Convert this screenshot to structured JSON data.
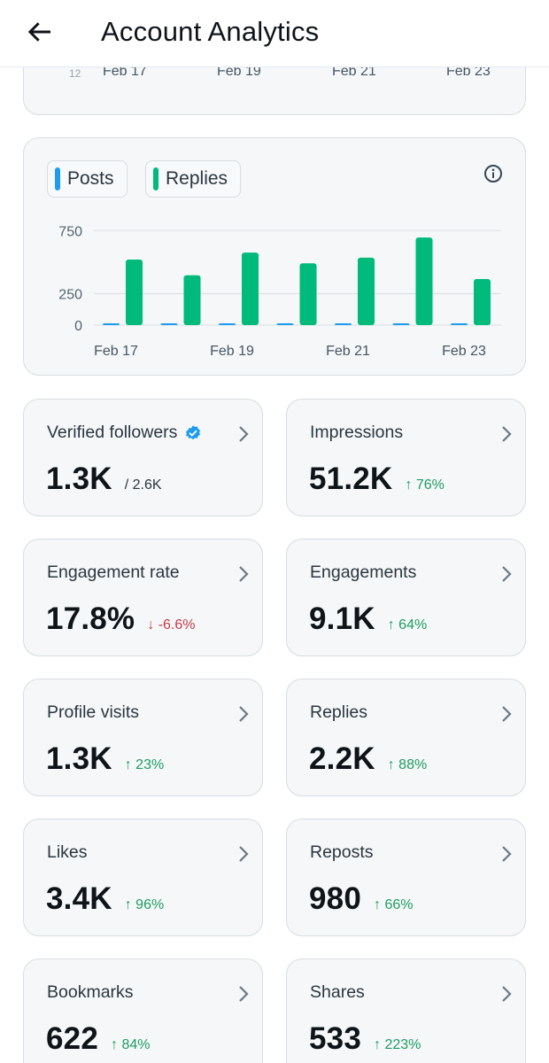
{
  "header": {
    "title": "Account Analytics",
    "back_icon": "arrow-left-icon"
  },
  "top_chart": {
    "partial_tick": "12",
    "x_ticks": [
      "Feb 17",
      "Feb 19",
      "Feb 21",
      "Feb 23"
    ]
  },
  "chart_data": {
    "type": "bar",
    "categories": [
      "Feb 17",
      "Feb 18",
      "Feb 19",
      "Feb 20",
      "Feb 21",
      "Feb 22",
      "Feb 23"
    ],
    "x_tick_labels": [
      "Feb 17",
      "Feb 19",
      "Feb 21",
      "Feb 23"
    ],
    "series": [
      {
        "name": "Posts",
        "color": "#1d9bf0",
        "values": [
          4,
          3,
          7,
          6,
          10,
          8,
          5
        ]
      },
      {
        "name": "Replies",
        "color": "#00ba7c",
        "values": [
          520,
          395,
          575,
          490,
          535,
          695,
          365
        ]
      }
    ],
    "y_ticks": [
      0,
      250,
      750
    ],
    "ylim": [
      0,
      780
    ],
    "legend": [
      "Posts",
      "Replies"
    ]
  },
  "legend": {
    "posts": {
      "label": "Posts",
      "color": "#1d9bf0"
    },
    "replies": {
      "label": "Replies",
      "color": "#00ba7c"
    }
  },
  "stats": {
    "verified_followers": {
      "label": "Verified followers",
      "value": "1.3K",
      "extra": "/ 2.6K"
    },
    "impressions": {
      "label": "Impressions",
      "value": "51.2K",
      "delta": "↑ 76%"
    },
    "engagement_rate": {
      "label": "Engagement rate",
      "value": "17.8%",
      "delta": "↓ -6.6%"
    },
    "engagements": {
      "label": "Engagements",
      "value": "9.1K",
      "delta": "↑ 64%"
    },
    "profile_visits": {
      "label": "Profile visits",
      "value": "1.3K",
      "delta": "↑ 23%"
    },
    "replies": {
      "label": "Replies",
      "value": "2.2K",
      "delta": "↑ 88%"
    },
    "likes": {
      "label": "Likes",
      "value": "3.4K",
      "delta": "↑ 96%"
    },
    "reposts": {
      "label": "Reposts",
      "value": "980",
      "delta": "↑ 66%"
    },
    "bookmarks": {
      "label": "Bookmarks",
      "value": "622",
      "delta": "↑ 84%"
    },
    "shares": {
      "label": "Shares",
      "value": "533",
      "delta": "↑ 223%"
    }
  },
  "colors": {
    "up": "#1e9c63",
    "down": "#c53b47",
    "verified": "#1d9bf0"
  }
}
